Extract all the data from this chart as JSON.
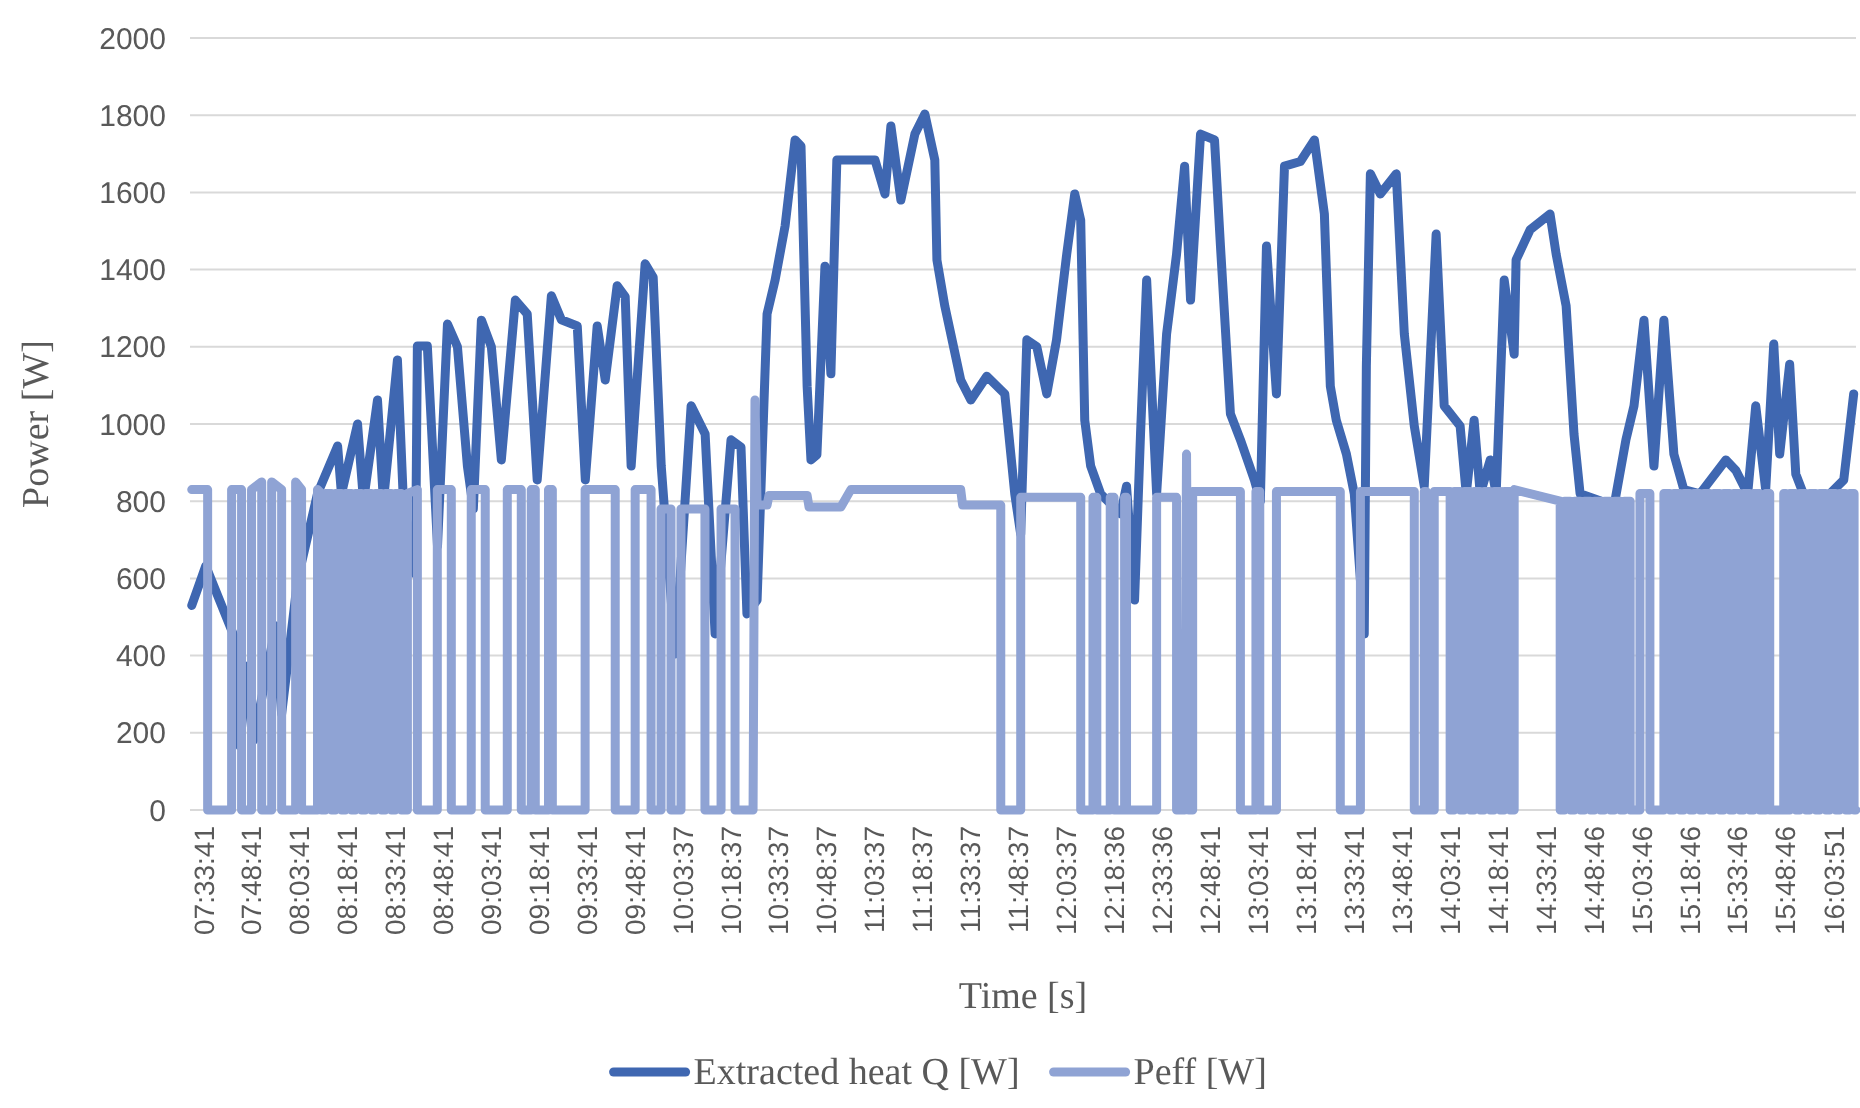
{
  "chart_data": {
    "type": "line",
    "xlabel": "Time [s]",
    "ylabel": "Power [W]",
    "xlim": [
      7.49,
      16.18
    ],
    "xticks": [
      {
        "value": 7.5614,
        "label": "07:33:41"
      },
      {
        "value": 7.8114,
        "label": "07:48:41"
      },
      {
        "value": 8.0614,
        "label": "08:03:41"
      },
      {
        "value": 8.3114,
        "label": "08:18:41"
      },
      {
        "value": 8.5614,
        "label": "08:33:41"
      },
      {
        "value": 8.8114,
        "label": "08:48:41"
      },
      {
        "value": 9.0614,
        "label": "09:03:41"
      },
      {
        "value": 9.3114,
        "label": "09:18:41"
      },
      {
        "value": 9.5614,
        "label": "09:33:41"
      },
      {
        "value": 9.8114,
        "label": "09:48:41"
      },
      {
        "value": 10.0603,
        "label": "10:03:37"
      },
      {
        "value": 10.3103,
        "label": "10:18:37"
      },
      {
        "value": 10.5603,
        "label": "10:33:37"
      },
      {
        "value": 10.8103,
        "label": "10:48:37"
      },
      {
        "value": 11.0603,
        "label": "11:03:37"
      },
      {
        "value": 11.3103,
        "label": "11:18:37"
      },
      {
        "value": 11.5603,
        "label": "11:33:37"
      },
      {
        "value": 11.8103,
        "label": "11:48:37"
      },
      {
        "value": 12.0603,
        "label": "12:03:37"
      },
      {
        "value": 12.31,
        "label": "12:18:36"
      },
      {
        "value": 12.56,
        "label": "12:33:36"
      },
      {
        "value": 12.8114,
        "label": "12:48:41"
      },
      {
        "value": 13.0614,
        "label": "13:03:41"
      },
      {
        "value": 13.3114,
        "label": "13:18:41"
      },
      {
        "value": 13.5614,
        "label": "13:33:41"
      },
      {
        "value": 13.8114,
        "label": "13:48:41"
      },
      {
        "value": 14.0614,
        "label": "14:03:41"
      },
      {
        "value": 14.3114,
        "label": "14:18:41"
      },
      {
        "value": 14.5614,
        "label": "14:33:41"
      },
      {
        "value": 14.8128,
        "label": "14:48:46"
      },
      {
        "value": 15.0628,
        "label": "15:03:46"
      },
      {
        "value": 15.3128,
        "label": "15:18:46"
      },
      {
        "value": 15.5628,
        "label": "15:33:46"
      },
      {
        "value": 15.8128,
        "label": "15:48:46"
      },
      {
        "value": 16.0642,
        "label": "16:03:51"
      }
    ],
    "ylim": [
      0,
      2000
    ],
    "yticks": [
      0,
      200,
      400,
      600,
      800,
      1000,
      1200,
      1400,
      1600,
      1800,
      2000
    ],
    "grid": "y",
    "legend": "bottom",
    "series": [
      {
        "name": "Extracted heat Q [W]",
        "color": "#3f67b1",
        "x": [
          7.499,
          7.572,
          7.728,
          7.749,
          7.791,
          7.822,
          7.937,
          7.968,
          8.051,
          8.155,
          8.26,
          8.28,
          8.364,
          8.395,
          8.468,
          8.499,
          8.572,
          8.603,
          8.666,
          8.676,
          8.728,
          8.781,
          8.833,
          8.885,
          8.937,
          8.968,
          9.01,
          9.062,
          9.114,
          9.187,
          9.249,
          9.301,
          9.375,
          9.427,
          9.51,
          9.552,
          9.614,
          9.656,
          9.718,
          9.76,
          9.791,
          9.864,
          9.906,
          9.948,
          10.021,
          10.104,
          10.177,
          10.229,
          10.312,
          10.364,
          10.395,
          10.448,
          10.5,
          10.542,
          10.594,
          10.646,
          10.677,
          10.709,
          10.729,
          10.76,
          10.802,
          10.833,
          10.864,
          10.958,
          11.063,
          11.115,
          11.146,
          11.198,
          11.271,
          11.323,
          11.375,
          11.386,
          11.427,
          11.51,
          11.563,
          11.646,
          11.74,
          11.792,
          11.823,
          11.855,
          11.907,
          11.959,
          12.01,
          12.063,
          12.105,
          12.136,
          12.157,
          12.188,
          12.24,
          12.344,
          12.375,
          12.417,
          12.448,
          12.48,
          12.532,
          12.584,
          12.636,
          12.678,
          12.709,
          12.761,
          12.834,
          12.865,
          12.917,
          12.969,
          13.042,
          13.073,
          13.105,
          13.157,
          13.199,
          13.282,
          13.355,
          13.407,
          13.438,
          13.469,
          13.522,
          13.563,
          13.615,
          13.626,
          13.647,
          13.699,
          13.782,
          13.824,
          13.876,
          13.928,
          13.959,
          13.99,
          14.032,
          14.115,
          14.147,
          14.188,
          14.22,
          14.272,
          14.303,
          14.345,
          14.397,
          14.407,
          14.48,
          14.584,
          14.616,
          14.668,
          14.709,
          14.741,
          14.918,
          14.98,
          15.022,
          15.074,
          15.126,
          15.178,
          15.23,
          15.282,
          15.366,
          15.501,
          15.553,
          15.615,
          15.657,
          15.709,
          15.751,
          15.782,
          15.834,
          15.866,
          15.918,
          16.043,
          16.116,
          16.168
        ],
        "values": [
          530,
          632,
          440,
          166,
          373,
          181,
          477,
          249,
          596,
          819,
          943,
          819,
          1000,
          800,
          1062,
          800,
          1166,
          800,
          611,
          1202,
          1202,
          684,
          1259,
          1200,
          891,
          780,
          1269,
          1200,
          907,
          1321,
          1285,
          855,
          1332,
          1270,
          1254,
          855,
          1254,
          1114,
          1358,
          1330,
          891,
          1415,
          1380,
          891,
          404,
          1047,
          974,
          456,
          959,
          940,
          508,
          544,
          1285,
          1373,
          1513,
          1736,
          1720,
          1098,
          907,
          920,
          1409,
          1130,
          1684,
          1684,
          1684,
          1596,
          1772,
          1580,
          1751,
          1803,
          1684,
          1425,
          1306,
          1114,
          1062,
          1124,
          1078,
          819,
          715,
          1218,
          1200,
          1078,
          1218,
          1440,
          1596,
          1528,
          1010,
          891,
          819,
          767,
          839,
          544,
          974,
          1373,
          819,
          1233,
          1440,
          1668,
          1321,
          1751,
          1736,
          1461,
          1026,
          959,
          855,
          800,
          1461,
          1078,
          1668,
          1680,
          1736,
          1544,
          1098,
          1010,
          922,
          819,
          456,
          1150,
          1648,
          1596,
          1648,
          1233,
          995,
          839,
          1166,
          1492,
          1047,
          995,
          819,
          1010,
          819,
          907,
          819,
          1373,
          1181,
          1425,
          1503,
          1544,
          1440,
          1306,
          974,
          819,
          788,
          959,
          1047,
          1269,
          891,
          1269,
          922,
          830,
          819,
          907,
          880,
          819,
          1047,
          830,
          1207,
          922,
          1155,
          870,
          803,
          819,
          855,
          1078
        ]
      },
      {
        "name": "Peff [W]",
        "color": "#8fa3d4",
        "x": [
          7.499,
          7.582,
          7.582,
          7.707,
          7.707,
          7.759,
          7.759,
          7.811,
          7.811,
          7.864,
          7.864,
          7.916,
          7.916,
          7.968,
          7.968,
          8.041,
          8.041,
          8.072,
          8.072,
          8.155,
          8.155,
          8.176,
          8.176,
          8.197,
          8.197,
          8.228,
          8.228,
          8.249,
          8.249,
          8.28,
          8.28,
          8.301,
          8.301,
          8.332,
          8.332,
          8.353,
          8.353,
          8.384,
          8.384,
          8.405,
          8.405,
          8.436,
          8.436,
          8.457,
          8.457,
          8.488,
          8.488,
          8.509,
          8.509,
          8.54,
          8.54,
          8.561,
          8.561,
          8.592,
          8.592,
          8.624,
          8.624,
          8.676,
          8.676,
          8.78,
          8.78,
          8.853,
          8.853,
          8.957,
          8.957,
          9.03,
          9.03,
          9.145,
          9.145,
          9.218,
          9.218,
          9.27,
          9.27,
          9.291,
          9.291,
          9.36,
          9.36,
          9.38,
          9.38,
          9.551,
          9.551,
          9.708,
          9.708,
          9.812,
          9.812,
          9.895,
          9.895,
          9.947,
          9.947,
          9.999,
          9.999,
          10.051,
          10.051,
          10.176,
          10.176,
          10.26,
          10.26,
          10.333,
          10.333,
          10.427,
          10.437,
          10.448,
          10.5,
          10.51,
          10.709,
          10.719,
          10.885,
          10.937,
          11.51,
          11.52,
          11.719,
          11.719,
          11.823,
          11.823,
          12.136,
          12.136,
          12.2,
          12.2,
          12.22,
          12.22,
          12.29,
          12.29,
          12.31,
          12.31,
          12.365,
          12.365,
          12.375,
          12.375,
          12.532,
          12.532,
          12.636,
          12.636,
          12.678,
          12.688,
          12.699,
          12.72,
          12.72,
          12.969,
          12.969,
          13.05,
          13.05,
          13.07,
          13.07,
          13.157,
          13.157,
          13.49,
          13.49,
          13.595,
          13.595,
          13.876,
          13.876,
          13.928,
          13.928,
          13.938,
          13.938,
          13.98,
          13.98,
          14.063,
          14.063,
          14.084,
          14.084,
          14.115,
          14.115,
          14.136,
          14.136,
          14.167,
          14.167,
          14.188,
          14.188,
          14.219,
          14.219,
          14.24,
          14.24,
          14.271,
          14.271,
          14.292,
          14.292,
          14.323,
          14.323,
          14.345,
          14.345,
          14.375,
          14.375,
          14.397,
          14.397,
          14.637,
          14.637,
          14.66,
          14.66,
          14.69,
          14.69,
          14.712,
          14.712,
          14.742,
          14.742,
          14.764,
          14.764,
          14.794,
          14.794,
          14.816,
          14.816,
          14.846,
          14.846,
          14.868,
          14.868,
          14.898,
          14.898,
          14.92,
          14.92,
          14.95,
          14.95,
          14.972,
          14.972,
          15.002,
          15.002,
          15.053,
          15.053,
          15.105,
          15.105,
          15.178,
          15.178,
          15.209,
          15.209,
          15.23,
          15.23,
          15.261,
          15.261,
          15.282,
          15.282,
          15.313,
          15.313,
          15.334,
          15.334,
          15.365,
          15.365,
          15.386,
          15.386,
          15.417,
          15.417,
          15.438,
          15.438,
          15.469,
          15.469,
          15.49,
          15.49,
          15.521,
          15.521,
          15.542,
          15.542,
          15.573,
          15.573,
          15.594,
          15.594,
          15.625,
          15.625,
          15.646,
          15.646,
          15.677,
          15.677,
          15.709,
          15.709,
          15.73,
          15.73,
          15.803,
          15.803,
          15.814,
          15.814,
          15.835,
          15.835,
          15.866,
          15.866,
          15.887,
          15.887,
          15.918,
          15.918,
          15.939,
          15.939,
          15.97,
          15.97,
          15.991,
          15.991,
          16.022,
          16.022,
          16.043,
          16.043,
          16.074,
          16.074,
          16.095,
          16.095,
          16.126,
          16.126,
          16.147,
          16.147,
          16.17,
          16.17,
          16.179
        ],
        "values": [
          830,
          830,
          0,
          0,
          830,
          830,
          0,
          0,
          830,
          850,
          0,
          0,
          850,
          830,
          0,
          0,
          850,
          830,
          0,
          0,
          830,
          820,
          0,
          0,
          820,
          820,
          0,
          0,
          820,
          820,
          0,
          0,
          820,
          820,
          0,
          0,
          820,
          820,
          0,
          0,
          820,
          820,
          0,
          0,
          820,
          820,
          0,
          0,
          820,
          820,
          0,
          0,
          820,
          820,
          0,
          0,
          820,
          830,
          0,
          0,
          830,
          830,
          0,
          0,
          830,
          830,
          0,
          0,
          830,
          830,
          0,
          0,
          830,
          830,
          0,
          0,
          830,
          830,
          0,
          0,
          830,
          830,
          0,
          0,
          830,
          830,
          0,
          0,
          780,
          780,
          0,
          0,
          780,
          780,
          0,
          0,
          780,
          780,
          0,
          0,
          1062,
          790,
          790,
          815,
          815,
          785,
          785,
          830,
          830,
          790,
          790,
          0,
          0,
          810,
          810,
          0,
          0,
          810,
          810,
          0,
          0,
          810,
          810,
          0,
          0,
          810,
          810,
          0,
          0,
          810,
          810,
          0,
          0,
          922,
          0,
          0,
          825,
          825,
          0,
          0,
          825,
          825,
          0,
          0,
          825,
          825,
          0,
          0,
          825,
          825,
          0,
          0,
          825,
          825,
          0,
          0,
          825,
          825,
          0,
          0,
          825,
          825,
          0,
          0,
          825,
          825,
          0,
          0,
          825,
          825,
          0,
          0,
          825,
          825,
          0,
          0,
          825,
          825,
          0,
          0,
          825,
          825,
          0,
          0,
          830,
          800,
          0,
          0,
          800,
          800,
          0,
          0,
          800,
          800,
          0,
          0,
          800,
          800,
          0,
          0,
          800,
          800,
          0,
          0,
          800,
          800,
          0,
          0,
          800,
          800,
          0,
          0,
          800,
          800,
          0,
          0,
          820,
          820,
          0,
          0,
          820,
          820,
          0,
          0,
          820,
          820,
          0,
          0,
          820,
          820,
          0,
          0,
          820,
          820,
          0,
          0,
          820,
          820,
          0,
          0,
          820,
          820,
          0,
          0,
          820,
          820,
          0,
          0,
          820,
          820,
          0,
          0,
          820,
          820,
          0,
          0,
          820,
          820,
          0,
          0,
          820,
          820,
          0,
          0,
          820,
          820,
          0,
          0,
          820,
          820,
          0,
          0,
          820,
          820,
          0,
          0,
          820,
          820,
          0,
          0,
          820,
          820,
          0,
          0,
          820,
          820,
          0,
          0,
          820,
          820,
          0,
          0,
          820,
          820,
          0,
          0
        ]
      }
    ]
  }
}
